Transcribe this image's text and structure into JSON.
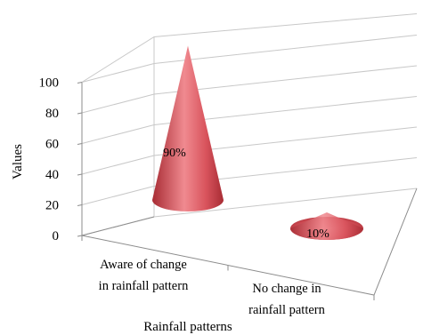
{
  "chart_data": {
    "type": "bar",
    "shape": "cone-3d",
    "categories": [
      [
        "Aware of change",
        "in rainfall pattern"
      ],
      [
        "No change in",
        "rainfall pattern"
      ]
    ],
    "values": [
      90,
      10
    ],
    "data_labels": [
      "90%",
      "10%"
    ],
    "xlabel": "Rainfall patterns",
    "ylabel": "Values",
    "ylim": [
      0,
      100
    ],
    "yticks": [
      "0",
      "20",
      "40",
      "60",
      "80",
      "100"
    ],
    "grid": true,
    "legend": "none",
    "colors": {
      "cone_dark": "#a82c34",
      "cone_mid": "#d9545d",
      "cone_light": "#f08a90",
      "grid": "#c8c8c8",
      "axis": "#8c8c8c"
    }
  }
}
